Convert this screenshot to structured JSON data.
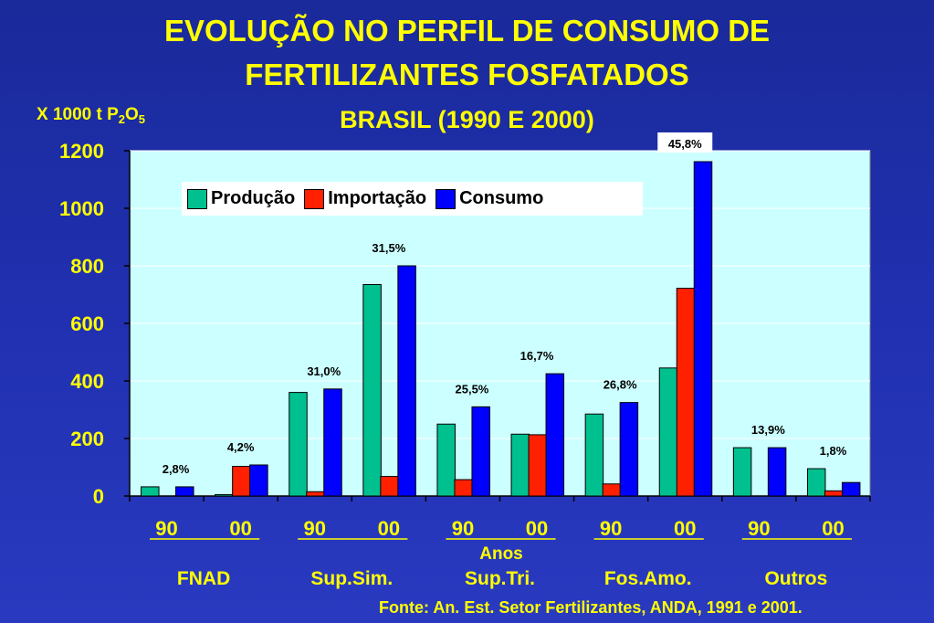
{
  "title_line1": "EVOLUÇÃO NO PERFIL DE CONSUMO DE",
  "title_line2": "FERTILIZANTES FOSFATADOS",
  "subtitle": "BRASIL (1990 E 2000)",
  "unit_label": "X 1000 t P",
  "unit_sub1": "2",
  "unit_mid": "O",
  "unit_sub2": "5",
  "footer": "Fonte: An. Est. Setor Fertilizantes, ANDA, 1991 e 2001.",
  "chart_data": {
    "type": "bar",
    "ylim": [
      0,
      1200
    ],
    "yticks": [
      0,
      200,
      400,
      600,
      800,
      1000,
      1200
    ],
    "xlabel": "Anos",
    "year_labels": [
      "90",
      "00",
      "90",
      "00",
      "90",
      "00",
      "90",
      "00",
      "90",
      "00"
    ],
    "groups": [
      "FNAD",
      "Sup.Sim.",
      "Sup.Tri.",
      "Fos.Amo.",
      "Outros"
    ],
    "categories": [
      "FNAD 90",
      "FNAD 00",
      "Sup.Sim. 90",
      "Sup.Sim. 00",
      "Sup.Tri. 90",
      "Sup.Tri. 00",
      "Fos.Amo. 90",
      "Fos.Amo. 00",
      "Outros 90",
      "Outros 00"
    ],
    "series": [
      {
        "name": "Produção",
        "color": "#00c090",
        "values": [
          32,
          5,
          360,
          735,
          250,
          215,
          285,
          445,
          168,
          95
        ]
      },
      {
        "name": "Importação",
        "color": "#ff2000",
        "values": [
          0,
          103,
          15,
          68,
          57,
          213,
          42,
          722,
          0,
          18
        ]
      },
      {
        "name": "Consumo",
        "color": "#0000ff",
        "values": [
          32,
          108,
          372,
          800,
          310,
          425,
          325,
          1162,
          168,
          47
        ]
      }
    ],
    "data_labels": [
      "2,8%",
      "4,2%",
      "31,0%",
      "31,5%",
      "25,5%",
      "16,7%",
      "26,8%",
      "45,8%",
      "13,9%",
      "1,8%"
    ],
    "grid": true,
    "legend_position": "top-left"
  }
}
